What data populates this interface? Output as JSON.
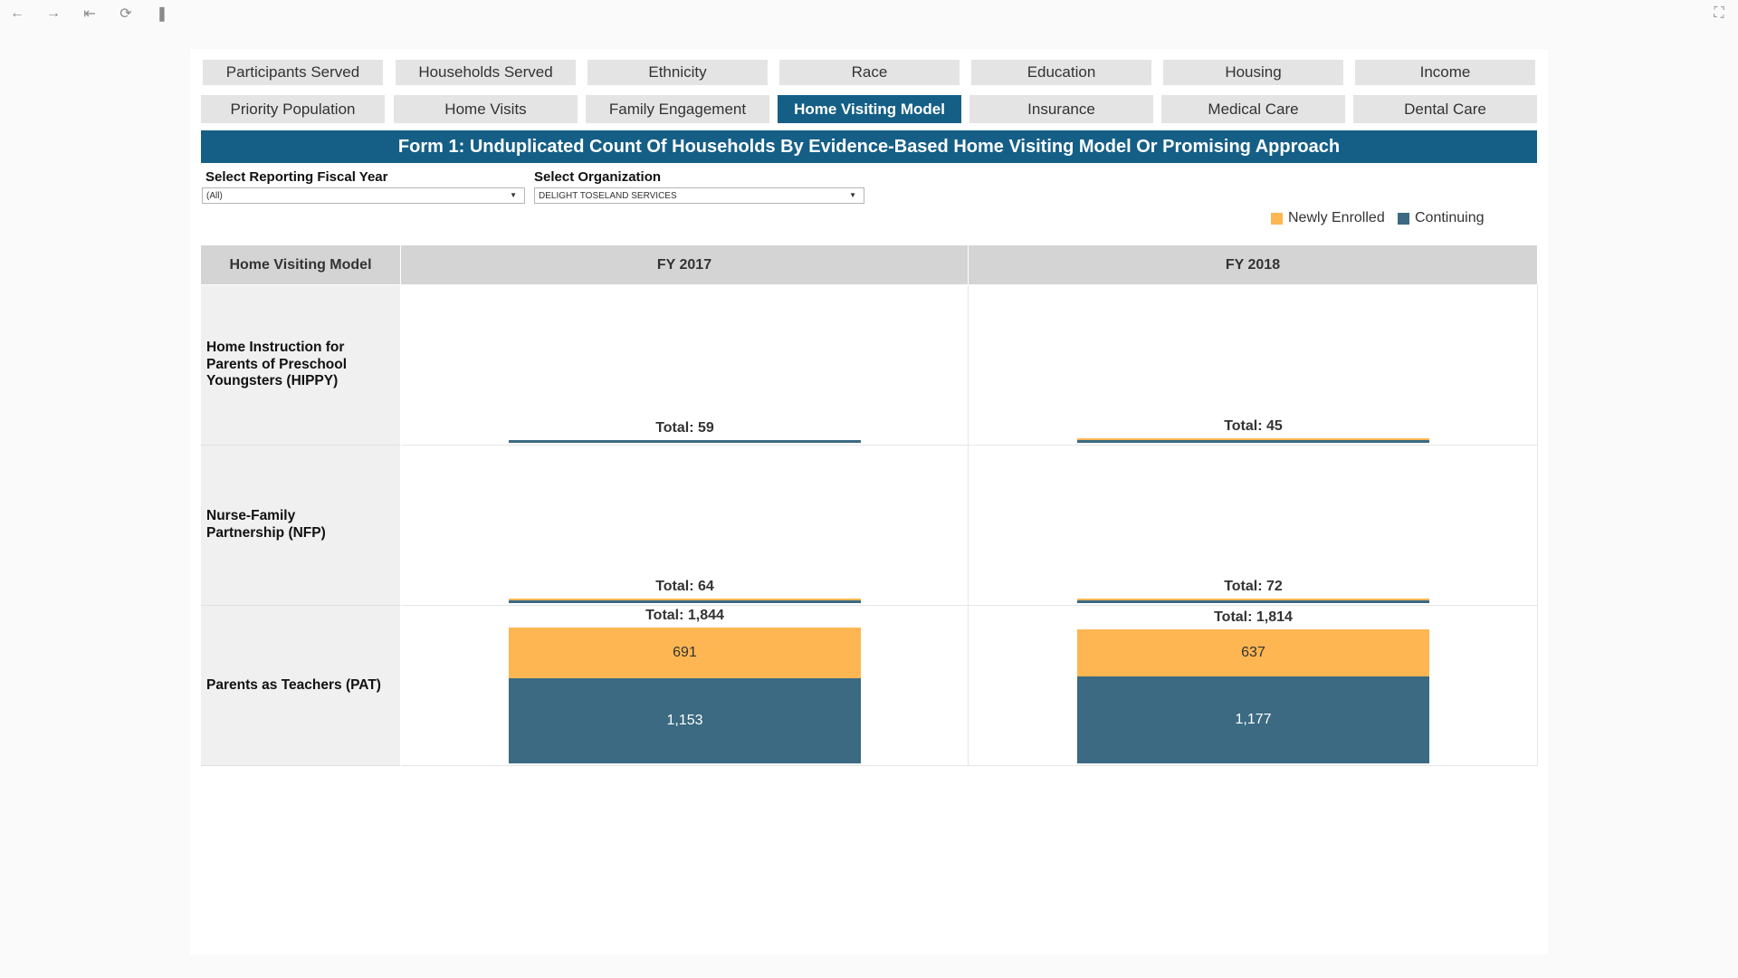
{
  "toolbar": {
    "icons": [
      "back-icon",
      "forward-icon",
      "first-page-icon",
      "refresh-icon",
      "pause-icon",
      "fullscreen-icon"
    ]
  },
  "nav": {
    "row1": [
      "Participants Served",
      "Households Served",
      "Ethnicity",
      "Race",
      "Education",
      "Housing",
      "Income"
    ],
    "row2": [
      "Priority Population",
      "Home Visits",
      "Family Engagement",
      "Home Visiting Model",
      "Insurance",
      "Medical Care",
      "Dental Care"
    ],
    "active": "Home Visiting Model"
  },
  "title": "Form 1: Unduplicated Count Of Households By Evidence-Based Home Visiting Model Or Promising Approach",
  "filters": {
    "fiscal_year": {
      "label": "Select Reporting Fiscal Year",
      "value": "(All)"
    },
    "organization": {
      "label": "Select Organization",
      "value": "DELIGHT TOSELAND SERVICES"
    }
  },
  "legend": {
    "newly_enrolled": "Newly Enrolled",
    "continuing": "Continuing"
  },
  "colors": {
    "newly_enrolled": "#fdb652",
    "continuing": "#3b6a82",
    "accent": "#155f87"
  },
  "table": {
    "row_header_title": "Home Visiting Model",
    "columns": [
      "FY 2017",
      "FY 2018"
    ]
  },
  "chart_data": {
    "type": "bar",
    "stacked": true,
    "categories": [
      "Home Instruction for Parents of Preschool Youngsters (HIPPY)",
      "Nurse-Family Partnership (NFP)",
      "Parents as Teachers (PAT)"
    ],
    "columns": [
      "FY 2017",
      "FY 2018"
    ],
    "series": [
      {
        "name": "Newly Enrolled",
        "values": [
          [
            0,
            6
          ],
          [
            5,
            4
          ],
          [
            691,
            637
          ]
        ]
      },
      {
        "name": "Continuing",
        "values": [
          [
            59,
            39
          ],
          [
            59,
            68
          ],
          [
            1153,
            1177
          ]
        ]
      }
    ],
    "totals": [
      [
        "Total: 59",
        "Total: 45"
      ],
      [
        "Total: 64",
        "Total: 72"
      ],
      [
        "Total: 1,844",
        "Total: 1,814"
      ]
    ],
    "segment_labels": [
      [
        "",
        ""
      ],
      [
        "",
        ""
      ],
      [
        [
          "691",
          "1,153"
        ],
        [
          "637",
          "1,177"
        ]
      ]
    ],
    "ymax": 1844
  }
}
